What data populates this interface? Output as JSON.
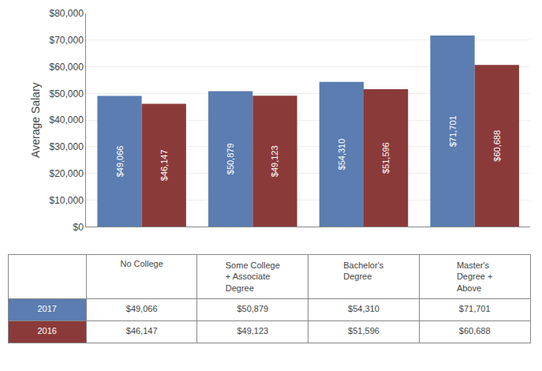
{
  "chart_data": {
    "type": "bar",
    "categories": [
      "No College",
      "Some College\n+ Associate\nDegree",
      "Bachelor's\nDegree",
      "Master's\nDegree +\nAbove"
    ],
    "series": [
      {
        "name": "2017",
        "color": "#5B7DB1",
        "values": [
          49066,
          50879,
          54310,
          71701
        ],
        "value_labels": [
          "$49,066",
          "$50,879",
          "$54,310",
          "$71,701"
        ]
      },
      {
        "name": "2016",
        "color": "#8B3A3A",
        "values": [
          46147,
          49123,
          51596,
          60688
        ],
        "value_labels": [
          "$46,147",
          "$49,123",
          "$51,596",
          "$60,688"
        ]
      }
    ],
    "ylabel": "Average Salary",
    "ylim": [
      0,
      80000
    ],
    "yticks": [
      {
        "value": 0,
        "label": "$0"
      },
      {
        "value": 10000,
        "label": "$10,000"
      },
      {
        "value": 20000,
        "label": "$20,000"
      },
      {
        "value": 30000,
        "label": "$30,000"
      },
      {
        "value": 40000,
        "label": "$40,000"
      },
      {
        "value": 50000,
        "label": "$50,000"
      },
      {
        "value": 60000,
        "label": "$60,000"
      },
      {
        "value": 70000,
        "label": "$70,000"
      },
      {
        "value": 80000,
        "label": "$80,000"
      }
    ],
    "grid": true,
    "data_labels": true,
    "tick_labels": "y"
  }
}
